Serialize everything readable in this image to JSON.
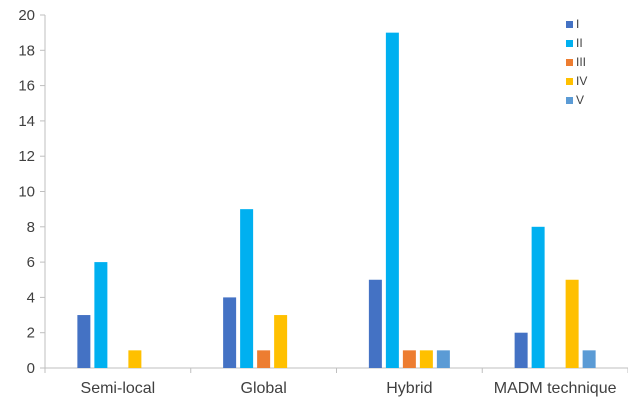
{
  "chart_data": {
    "type": "bar",
    "categories": [
      "Semi-local",
      "Global",
      "Hybrid",
      "MADM technique"
    ],
    "series": [
      {
        "name": "I",
        "values": [
          3,
          4,
          5,
          2
        ],
        "color": "#4472C4"
      },
      {
        "name": "II",
        "values": [
          6,
          9,
          19,
          8
        ],
        "color": "#00B0F0"
      },
      {
        "name": "III",
        "values": [
          0,
          1,
          1,
          0
        ],
        "color": "#ED7D31"
      },
      {
        "name": "IV",
        "values": [
          1,
          3,
          1,
          5
        ],
        "color": "#FFC000"
      },
      {
        "name": "V",
        "values": [
          0,
          0,
          1,
          1
        ],
        "color": "#5B9BD5"
      }
    ],
    "yticks": [
      0,
      2,
      4,
      6,
      8,
      10,
      12,
      14,
      16,
      18,
      20
    ],
    "ylim": [
      0,
      20
    ],
    "title": "",
    "xlabel": "",
    "ylabel": "",
    "grid": false,
    "legend": "top-right"
  }
}
